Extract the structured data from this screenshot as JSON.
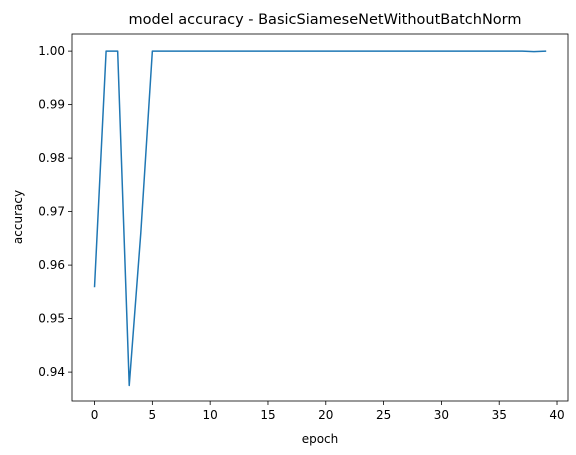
{
  "chart_data": {
    "type": "line",
    "title": "model accuracy - BasicSiameseNetWithoutBatchNorm",
    "xlabel": "epoch",
    "ylabel": "accuracy",
    "xlim": [
      -1.95,
      40.95
    ],
    "ylim": [
      0.9346,
      1.0032
    ],
    "xticks": [
      0,
      5,
      10,
      15,
      20,
      25,
      30,
      35,
      40
    ],
    "yticks": [
      0.94,
      0.95,
      0.96,
      0.97,
      0.98,
      0.99,
      1.0
    ],
    "ytick_labels": [
      "0.94",
      "0.95",
      "0.96",
      "0.97",
      "0.98",
      "0.99",
      "1.00"
    ],
    "grid": false,
    "series": [
      {
        "color": "#1f77b4",
        "x": [
          0,
          1,
          2,
          3,
          4,
          5,
          6,
          7,
          8,
          9,
          10,
          11,
          12,
          13,
          14,
          15,
          16,
          17,
          18,
          19,
          20,
          21,
          22,
          23,
          24,
          25,
          26,
          27,
          28,
          29,
          30,
          31,
          32,
          33,
          34,
          35,
          36,
          37,
          38,
          39
        ],
        "values": [
          0.956,
          1.0,
          1.0,
          0.9375,
          0.966,
          1.0,
          1.0,
          1.0,
          1.0,
          1.0,
          1.0,
          1.0,
          1.0,
          1.0,
          1.0,
          1.0,
          1.0,
          1.0,
          1.0,
          1.0,
          1.0,
          1.0,
          1.0,
          1.0,
          1.0,
          1.0,
          1.0,
          1.0,
          1.0,
          1.0,
          1.0,
          1.0,
          1.0,
          1.0,
          1.0,
          1.0,
          1.0,
          1.0,
          0.9999,
          1.0
        ]
      }
    ]
  }
}
